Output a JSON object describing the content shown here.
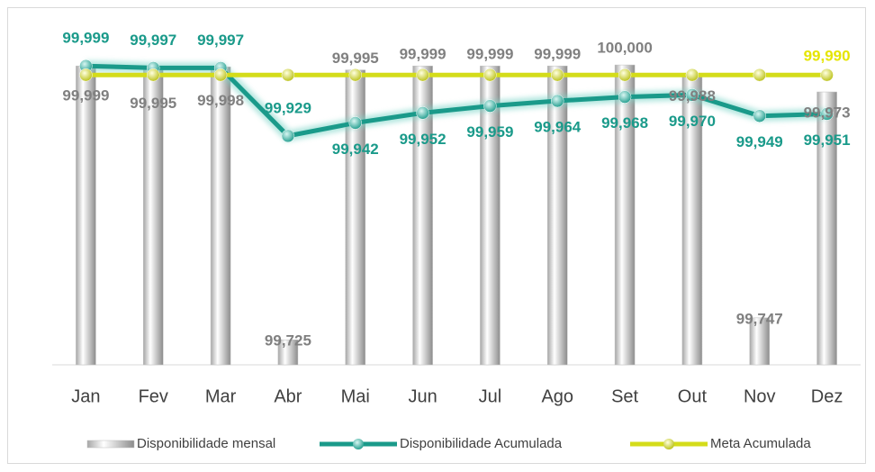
{
  "chart_data": {
    "type": "bar-line",
    "categories": [
      "Jan",
      "Fev",
      "Mar",
      "Abr",
      "Mai",
      "Jun",
      "Jul",
      "Ago",
      "Set",
      "Out",
      "Nov",
      "Dez"
    ],
    "ylim": [
      99.7,
      100.01
    ],
    "series": [
      {
        "name": "Disponibilidade mensal",
        "type": "bar",
        "color": "#d9d9d9",
        "values": [
          99.999,
          99.995,
          99.998,
          99.725,
          99.995,
          99.999,
          99.999,
          99.999,
          100.0,
          99.988,
          99.747,
          99.973
        ],
        "value_labels": [
          "99,999",
          "99,995",
          "99,998",
          "99,725",
          "99,995",
          "99,999",
          "99,999",
          "99,999",
          "100,000",
          "99,988",
          "99,747",
          "99,973"
        ]
      },
      {
        "name": "Disponibilidade Acumulada",
        "type": "line",
        "color": "#1a9a8a",
        "values": [
          99.999,
          99.997,
          99.997,
          99.929,
          99.942,
          99.952,
          99.959,
          99.964,
          99.968,
          99.97,
          99.949,
          99.951
        ],
        "value_labels": [
          "99,999",
          "99,997",
          "99,997",
          "99,929",
          "99,942",
          "99,952",
          "99,959",
          "99,964",
          "99,968",
          "99,970",
          "99,949",
          "99,951"
        ]
      },
      {
        "name": "Meta Acumulada",
        "type": "line",
        "color": "#d4dc1a",
        "values": [
          99.99,
          99.99,
          99.99,
          99.99,
          99.99,
          99.99,
          99.99,
          99.99,
          99.99,
          99.99,
          99.99,
          99.99
        ],
        "value_labels": [
          null,
          null,
          null,
          null,
          null,
          null,
          null,
          null,
          null,
          null,
          null,
          "99,990"
        ]
      }
    ]
  }
}
